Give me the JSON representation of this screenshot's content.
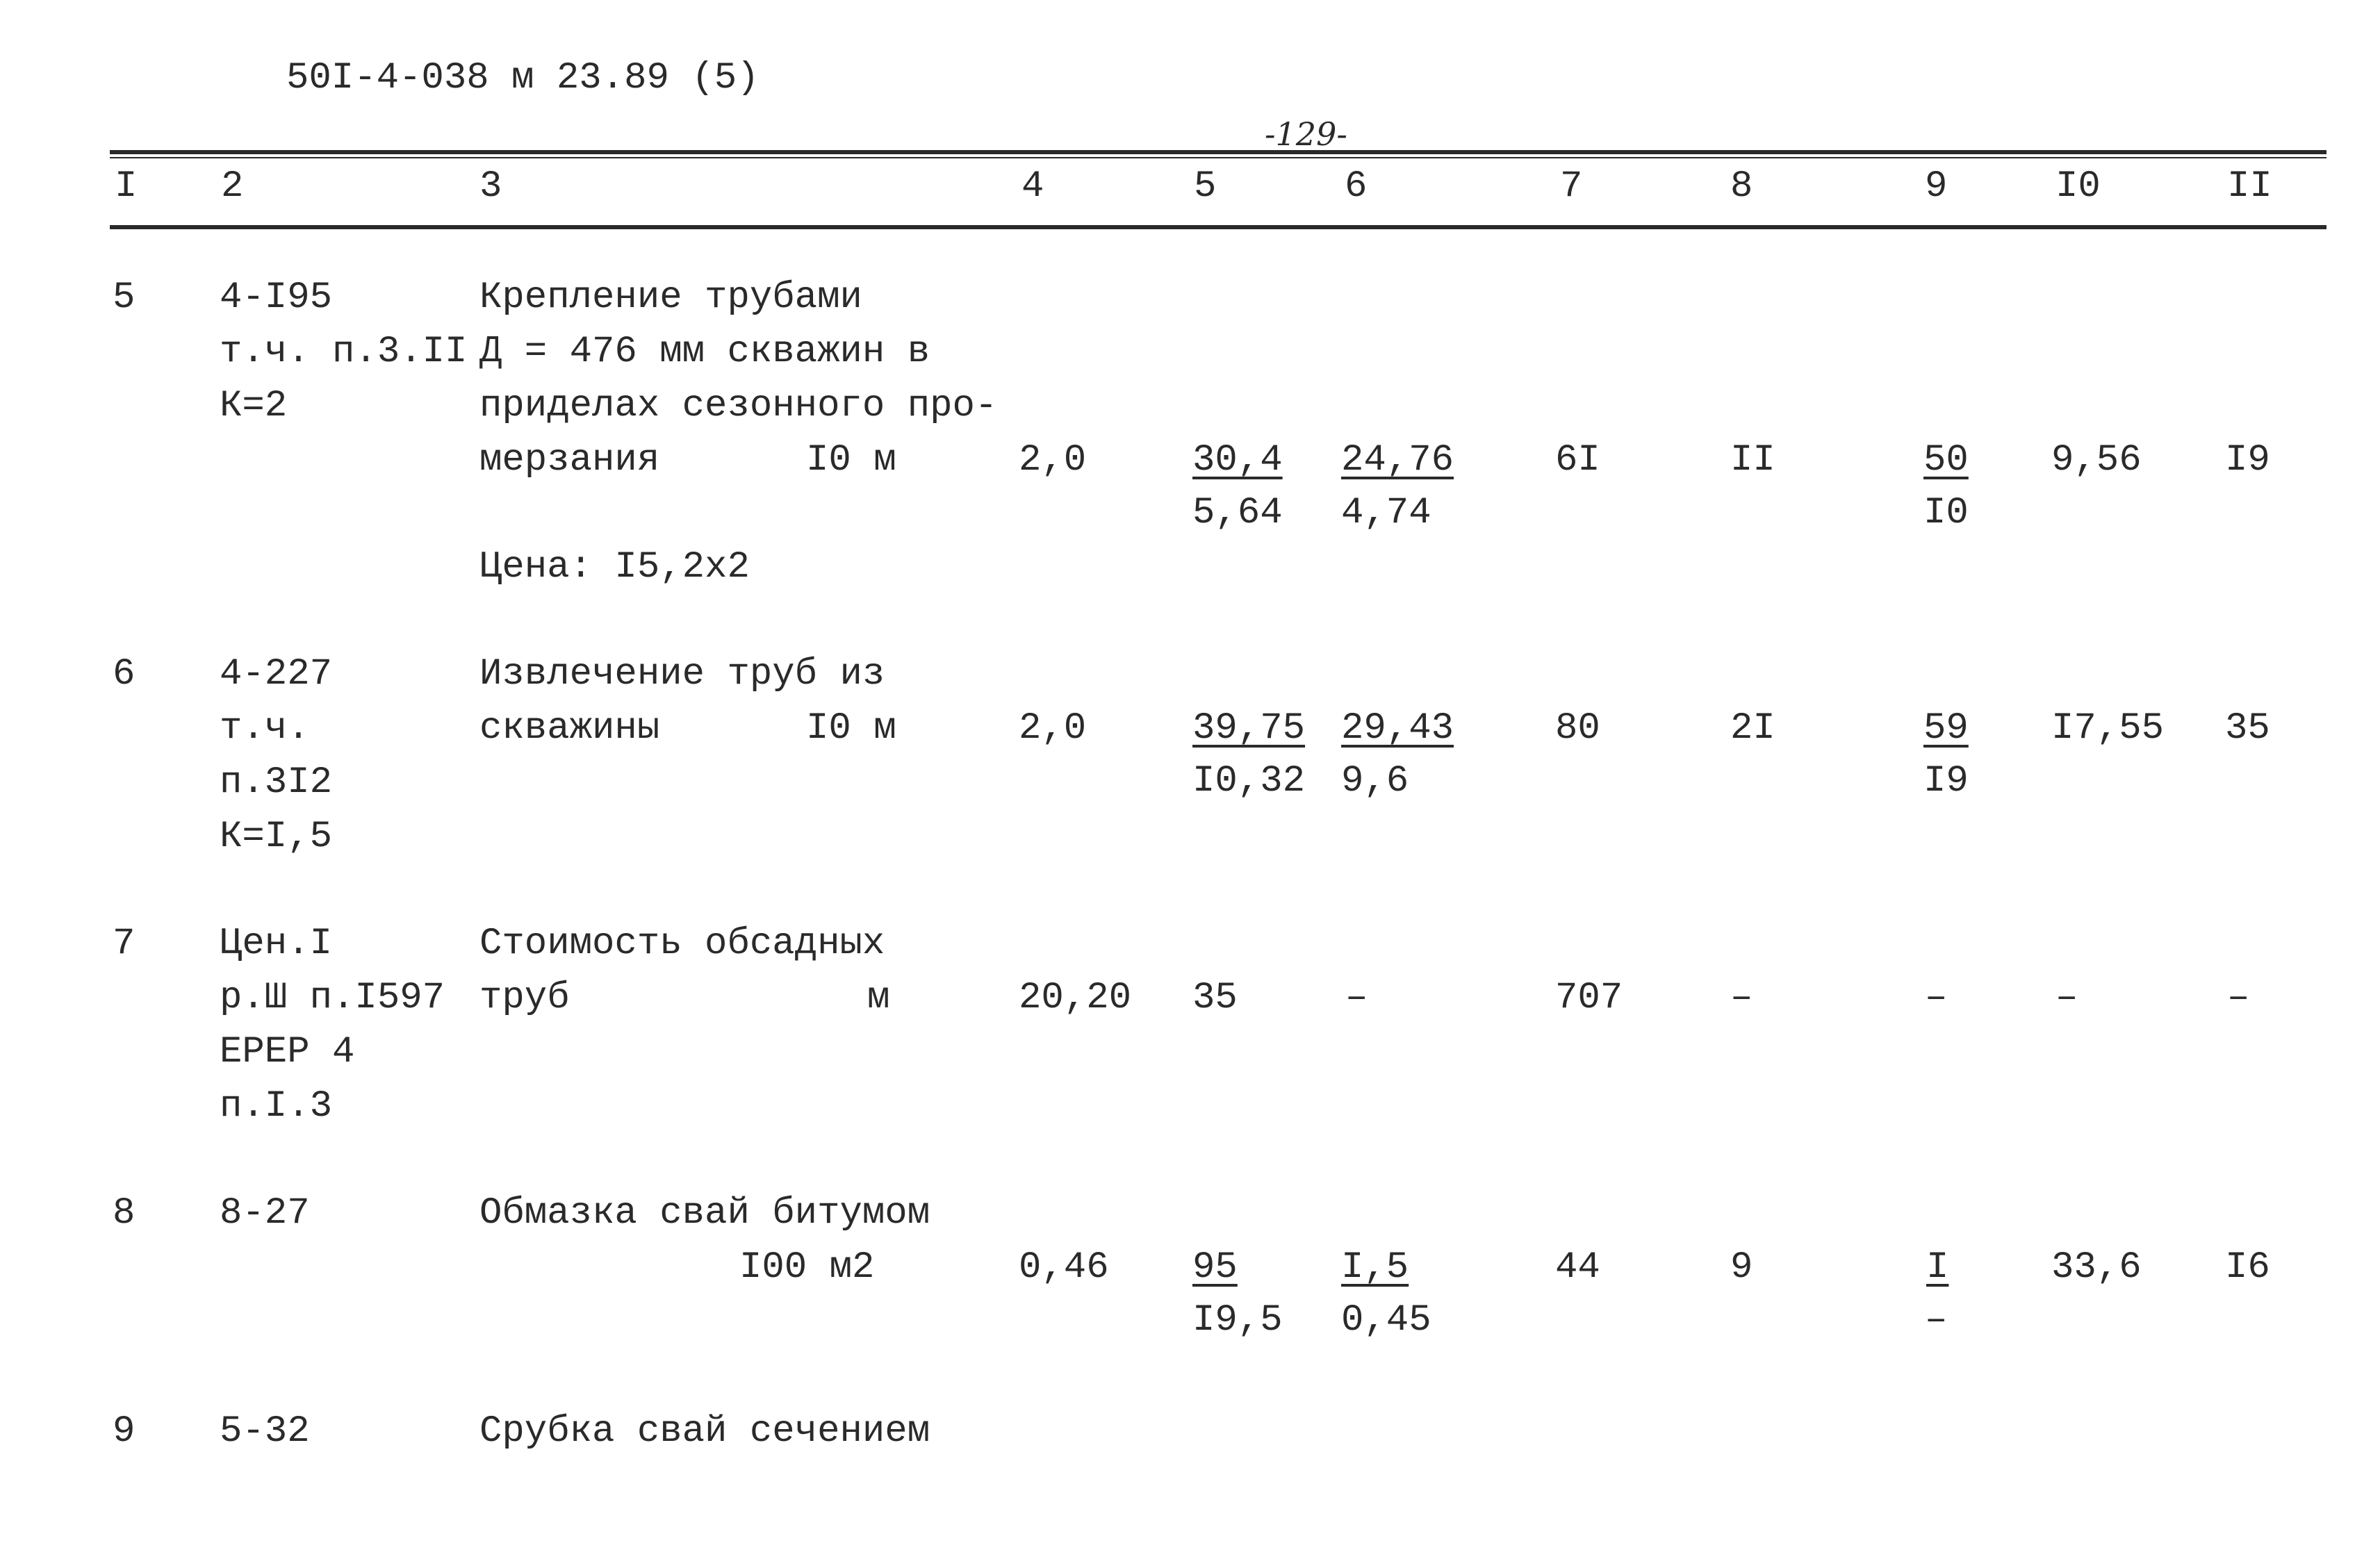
{
  "doc_code": "50I-4-038 м 23.89 (5)",
  "page_number": "-129-",
  "columns": [
    "I",
    "2",
    "3",
    "4",
    "5",
    "6",
    "7",
    "8",
    "9",
    "I0",
    "II"
  ],
  "rows": [
    {
      "no": "5",
      "code_lines": [
        "4-I95",
        "т.ч. п.3.II",
        "К=2"
      ],
      "desc_lines": [
        "Крепление трубами",
        "Д = 476 мм скважин в",
        "приделах сезонного про-",
        "мерзания"
      ],
      "unit": "I0 м",
      "note": "Цена: I5,2x2",
      "qty": "2,0",
      "c5_top": "30,4",
      "c5_bot": "5,64",
      "c6_top": "24,76",
      "c6_bot": "4,74",
      "c7": "6I",
      "c8": "II",
      "c9_top": "50",
      "c9_bot": "I0",
      "c10": "9,56",
      "c11": "I9"
    },
    {
      "no": "6",
      "code_lines": [
        "4-227",
        "т.ч.",
        "п.3I2",
        "К=I,5"
      ],
      "desc_lines": [
        "Извлечение труб из",
        "скважины"
      ],
      "unit": "I0 м",
      "qty": "2,0",
      "c5_top": "39,75",
      "c5_bot": "I0,32",
      "c6_top": "29,43",
      "c6_bot": "9,6",
      "c7": "80",
      "c8": "2I",
      "c9_top": "59",
      "c9_bot": "I9",
      "c10": "I7,55",
      "c11": "35"
    },
    {
      "no": "7",
      "code_lines": [
        "Цен.I",
        "р.Ш п.I597",
        "ЕРЕР 4",
        "п.I.3"
      ],
      "desc_lines": [
        "Стоимость обсадных",
        "труб"
      ],
      "unit": "м",
      "qty": "20,20",
      "c5": "35",
      "c6": "–",
      "c7": "707",
      "c8": "–",
      "c9": "–",
      "c10": "–",
      "c11": "–"
    },
    {
      "no": "8",
      "code_lines": [
        "8-27"
      ],
      "desc_lines": [
        "Обмазка свай битумом"
      ],
      "unit": "I00 м2",
      "qty": "0,46",
      "c5_top": "95",
      "c5_bot": "I9,5",
      "c6_top": "I,5",
      "c6_bot": "0,45",
      "c7": "44",
      "c8": "9",
      "c9_top": "I",
      "c9_bot": "–",
      "c10": "33,6",
      "c11": "I6"
    },
    {
      "no": "9",
      "code_lines": [
        "5-32"
      ],
      "desc_lines": [
        "Срубка свай сечением"
      ]
    }
  ]
}
